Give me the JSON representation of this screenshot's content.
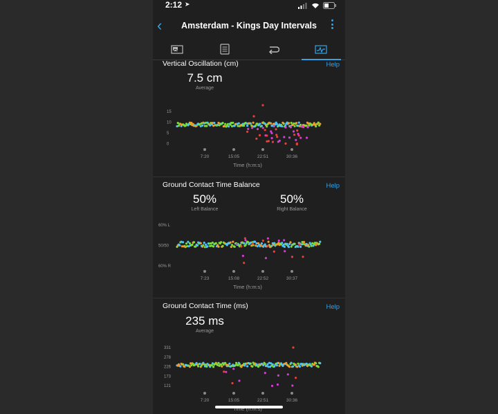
{
  "status": {
    "time": "2:12"
  },
  "header": {
    "title": "Amsterdam - Kings Day Intervals"
  },
  "tabs": [
    {
      "name": "summary-tab-icon"
    },
    {
      "name": "details-tab-icon"
    },
    {
      "name": "laps-tab-icon"
    },
    {
      "name": "charts-tab-icon"
    }
  ],
  "help_label": "Help",
  "colors": {
    "accent": "#34a3e6",
    "green": "#7ddc3a",
    "blue": "#4fc3f7",
    "orange": "#f39c2b",
    "red": "#e8403a",
    "purple": "#d63cd6"
  },
  "vertical_oscillation": {
    "title": "Vertical Oscillation (cm)",
    "value": "7.5 cm",
    "value_label": "Average",
    "y_ticks": [
      "15",
      "10",
      "5",
      "0"
    ],
    "x_ticks": [
      "7:20",
      "15:05",
      "22:51",
      "30:36"
    ],
    "x_label": "Time (h:m:s)"
  },
  "gct_balance": {
    "title": "Ground Contact Time Balance",
    "left_value": "50%",
    "left_label": "Left Balance",
    "right_value": "50%",
    "right_label": "Right Balance",
    "y_ticks": [
      "60% L",
      "50/50",
      "60% R"
    ],
    "x_ticks": [
      "7:23",
      "15:08",
      "22:52",
      "30:37"
    ],
    "x_label": "Time (h:m:s)"
  },
  "gct": {
    "title": "Ground Contact Time (ms)",
    "value": "235 ms",
    "value_label": "Average",
    "y_ticks": [
      "331",
      "278",
      "226",
      "173",
      "121"
    ],
    "x_ticks": [
      "7:20",
      "15:05",
      "22:51",
      "30:36"
    ],
    "x_label": "Time (h:m:s)"
  }
}
